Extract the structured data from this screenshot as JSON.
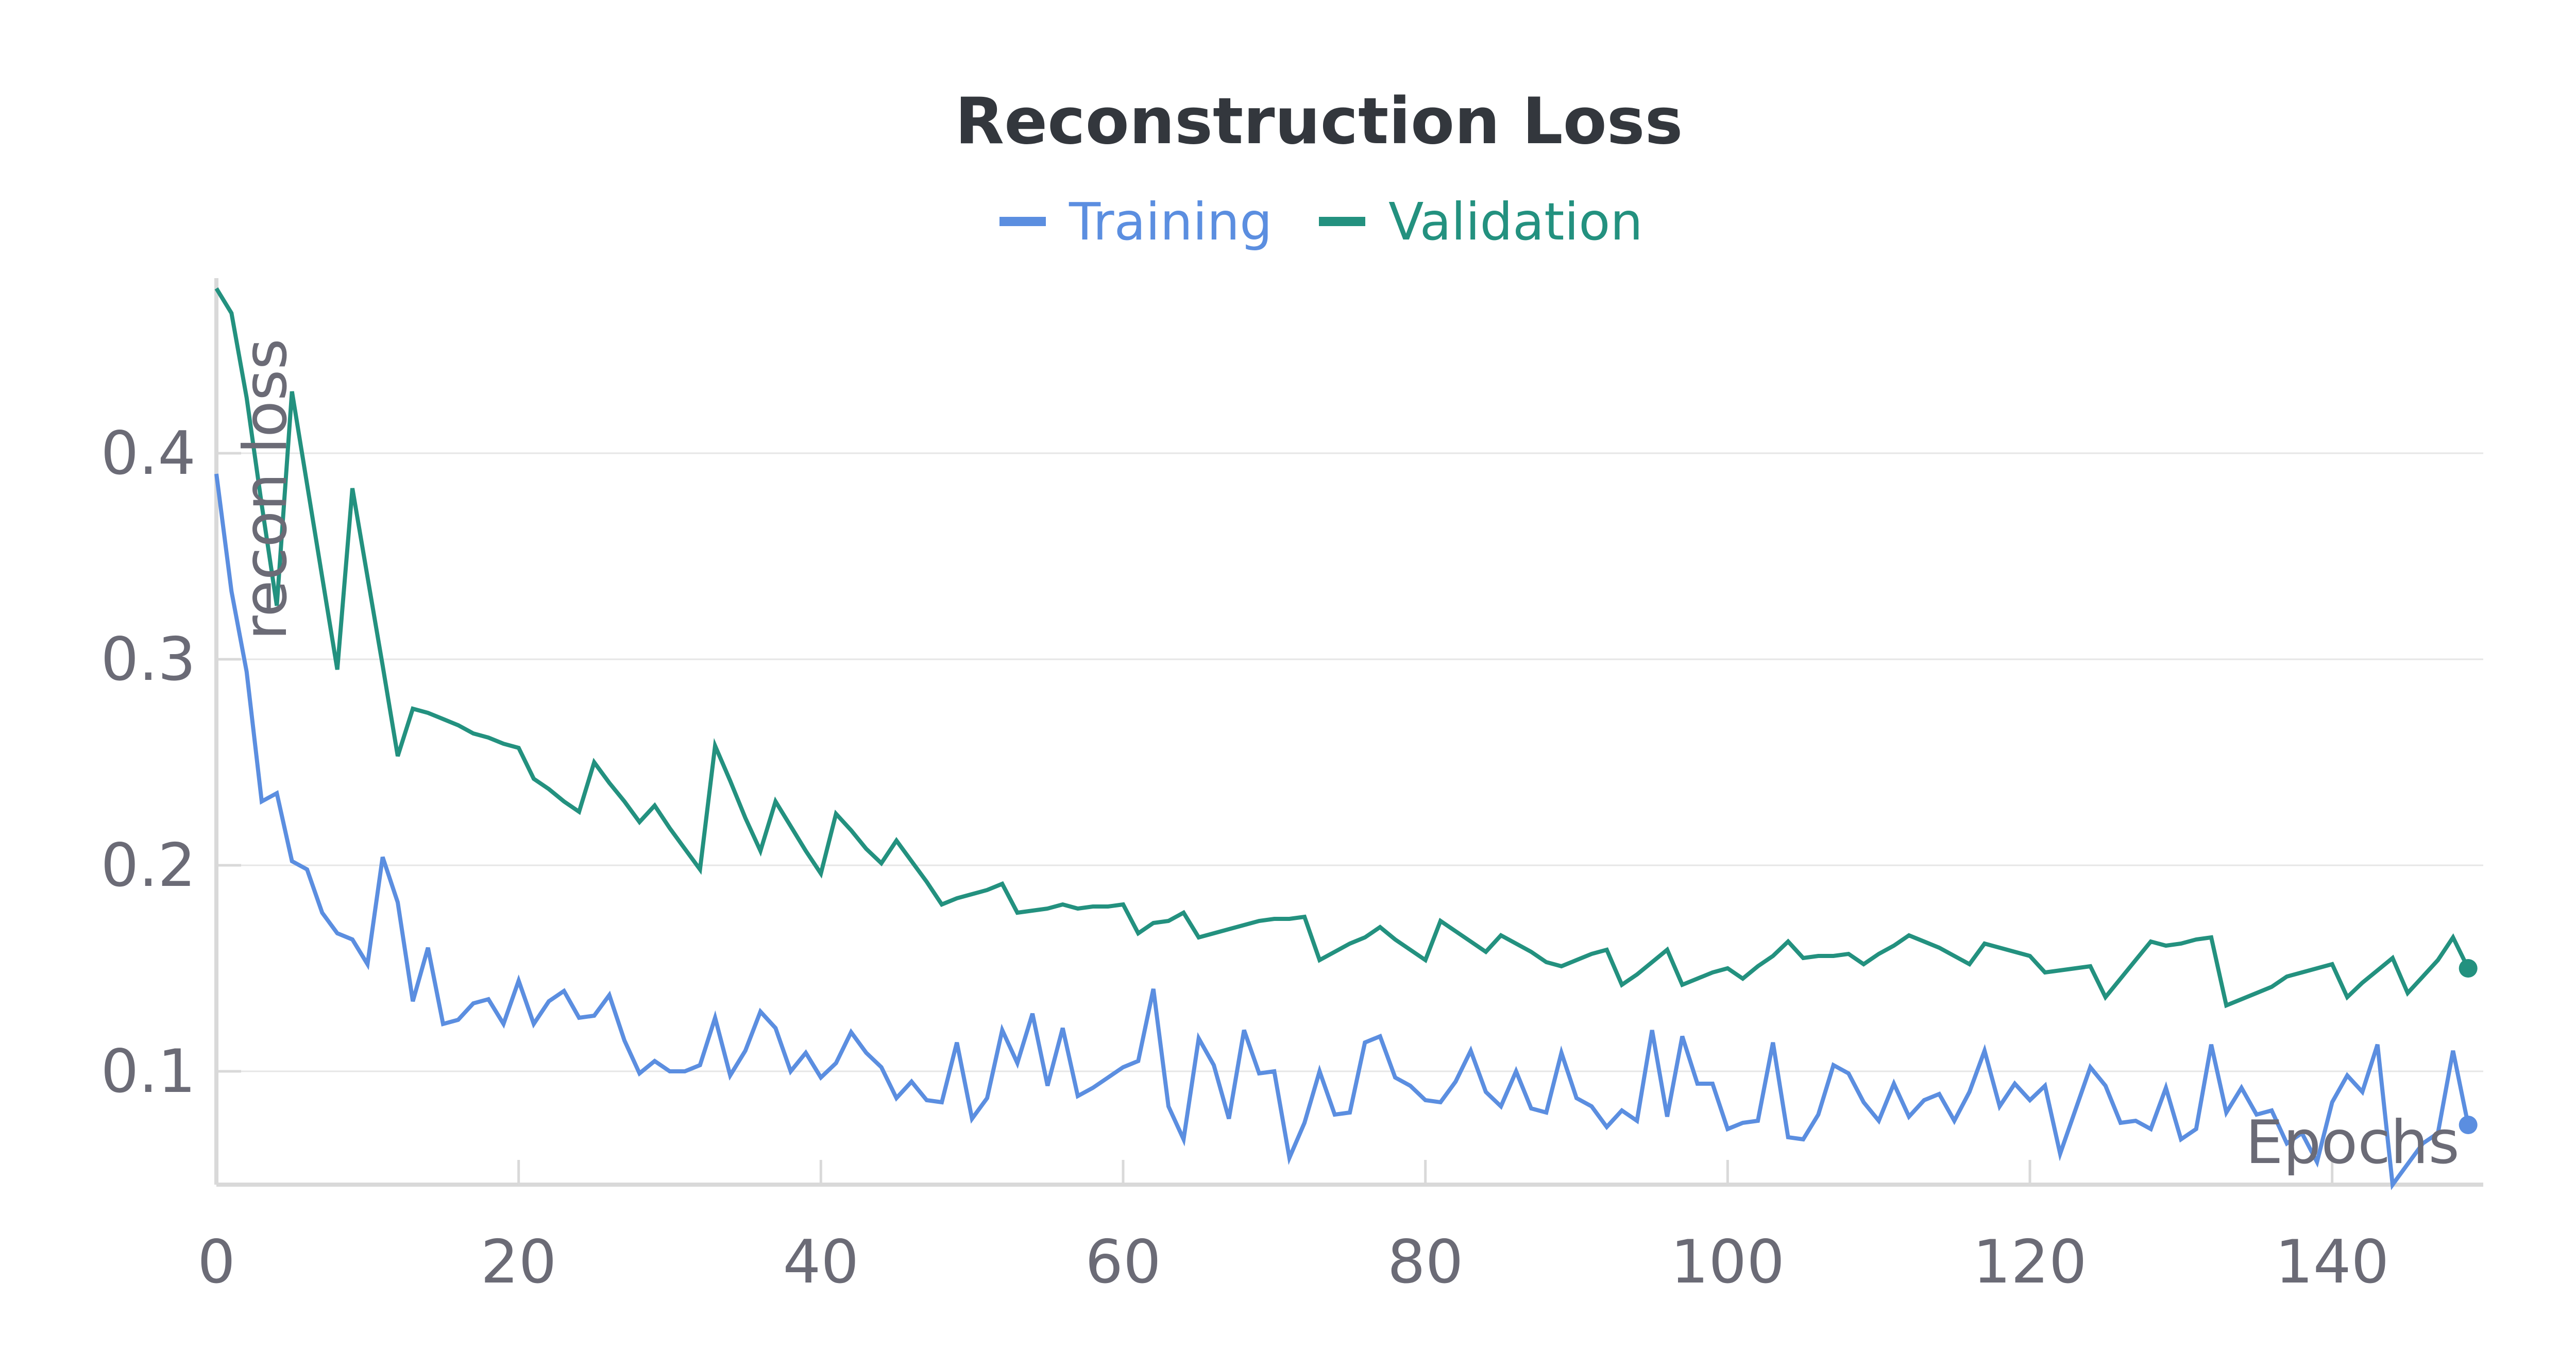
{
  "chart_data": {
    "type": "line",
    "title": "Reconstruction Loss",
    "xlabel": "Epochs",
    "ylabel": "recon loss",
    "xlim": [
      0,
      150
    ],
    "ylim": [
      0.045,
      0.48
    ],
    "x_ticks": [
      0,
      20,
      40,
      60,
      80,
      100,
      120,
      140
    ],
    "y_ticks": [
      0.1,
      0.2,
      0.3,
      0.4
    ],
    "grid": "horizontal",
    "legend_position": "top-center",
    "series": [
      {
        "name": "Training",
        "color": "#5b8ee0",
        "x": [
          0,
          1,
          2,
          3,
          4,
          5,
          6,
          7,
          8,
          9,
          10,
          11,
          12,
          13,
          14,
          15,
          16,
          17,
          18,
          19,
          20,
          21,
          22,
          23,
          24,
          25,
          26,
          27,
          28,
          29,
          30,
          31,
          32,
          33,
          34,
          35,
          36,
          37,
          38,
          39,
          40,
          41,
          42,
          43,
          44,
          45,
          46,
          47,
          48,
          49,
          50,
          51,
          52,
          53,
          54,
          55,
          56,
          57,
          58,
          59,
          60,
          61,
          62,
          63,
          64,
          65,
          66,
          67,
          68,
          69,
          70,
          71,
          72,
          73,
          74,
          75,
          76,
          77,
          78,
          79,
          80,
          81,
          82,
          83,
          84,
          85,
          86,
          87,
          88,
          89,
          90,
          91,
          92,
          93,
          94,
          95,
          96,
          97,
          98,
          99,
          100,
          101,
          102,
          103,
          104,
          105,
          106,
          107,
          108,
          109,
          110,
          111,
          112,
          113,
          114,
          115,
          116,
          117,
          118,
          119,
          120,
          121,
          122,
          123,
          124,
          125,
          126,
          127,
          128,
          129,
          130,
          131,
          132,
          133,
          134,
          135,
          136,
          137,
          138,
          139,
          140,
          141,
          142,
          143,
          144,
          145,
          146,
          147,
          148,
          149
        ],
        "values": [
          0.39,
          0.333,
          0.294,
          0.231,
          0.235,
          0.202,
          0.198,
          0.177,
          0.167,
          0.164,
          0.152,
          0.204,
          0.182,
          0.134,
          0.16,
          0.123,
          0.125,
          0.133,
          0.135,
          0.123,
          0.144,
          0.123,
          0.134,
          0.139,
          0.126,
          0.127,
          0.137,
          0.115,
          0.099,
          0.105,
          0.1,
          0.1,
          0.103,
          0.126,
          0.098,
          0.11,
          0.129,
          0.121,
          0.1,
          0.109,
          0.097,
          0.104,
          0.119,
          0.109,
          0.102,
          0.087,
          0.095,
          0.086,
          0.085,
          0.114,
          0.077,
          0.087,
          0.12,
          0.104,
          0.128,
          0.093,
          0.121,
          0.088,
          0.092,
          0.097,
          0.102,
          0.105,
          0.14,
          0.083,
          0.067,
          0.116,
          0.103,
          0.077,
          0.12,
          0.099,
          0.1,
          0.058,
          0.075,
          0.1,
          0.079,
          0.08,
          0.114,
          0.117,
          0.097,
          0.093,
          0.086,
          0.085,
          0.095,
          0.11,
          0.09,
          0.083,
          0.1,
          0.082,
          0.08,
          0.109,
          0.087,
          0.083,
          0.073,
          0.081,
          0.076,
          0.12,
          0.078,
          0.117,
          0.094,
          0.094,
          0.072,
          0.075,
          0.076,
          0.114,
          0.068,
          0.067,
          0.079,
          0.103,
          0.099,
          0.085,
          0.076,
          0.094,
          0.078,
          0.086,
          0.089,
          0.076,
          0.09,
          0.11,
          0.083,
          0.094,
          0.086,
          0.093,
          0.06,
          0.081,
          0.102,
          0.093,
          0.075,
          0.076,
          0.072,
          0.092,
          0.067,
          0.072,
          0.113,
          0.08,
          0.092,
          0.079,
          0.081,
          0.065,
          0.07,
          0.056,
          0.085,
          0.098,
          0.09,
          0.113,
          0.045,
          0.055,
          0.065,
          0.07,
          0.11,
          0.074
        ]
      },
      {
        "name": "Validation",
        "color": "#23917f",
        "x": [
          0,
          1,
          2,
          3,
          4,
          5,
          6,
          7,
          8,
          9,
          10,
          11,
          12,
          13,
          14,
          15,
          16,
          17,
          18,
          19,
          20,
          21,
          22,
          23,
          24,
          25,
          26,
          27,
          28,
          29,
          30,
          31,
          32,
          33,
          34,
          35,
          36,
          37,
          38,
          39,
          40,
          41,
          42,
          43,
          44,
          45,
          46,
          47,
          48,
          49,
          50,
          51,
          52,
          53,
          54,
          55,
          56,
          57,
          58,
          59,
          60,
          61,
          62,
          63,
          64,
          65,
          66,
          67,
          68,
          69,
          70,
          71,
          72,
          73,
          74,
          75,
          76,
          77,
          78,
          79,
          80,
          81,
          82,
          83,
          84,
          85,
          86,
          87,
          88,
          89,
          90,
          91,
          92,
          93,
          94,
          95,
          96,
          97,
          98,
          99,
          100,
          101,
          102,
          103,
          104,
          105,
          106,
          107,
          108,
          109,
          110,
          111,
          112,
          113,
          114,
          115,
          116,
          117,
          118,
          119,
          120,
          121,
          122,
          123,
          124,
          125,
          126,
          127,
          128,
          129,
          130,
          131,
          132,
          133,
          134,
          135,
          136,
          137,
          138,
          139,
          140,
          141,
          142,
          143,
          144,
          145,
          146,
          147,
          148,
          149
        ],
        "values": [
          0.48,
          0.468,
          0.427,
          0.375,
          0.326,
          0.43,
          0.385,
          0.34,
          0.295,
          0.383,
          0.34,
          0.297,
          0.253,
          0.276,
          0.274,
          0.271,
          0.268,
          0.264,
          0.262,
          0.259,
          0.257,
          0.242,
          0.237,
          0.231,
          0.226,
          0.25,
          0.24,
          0.231,
          0.221,
          0.229,
          0.218,
          0.208,
          0.198,
          0.258,
          0.241,
          0.223,
          0.207,
          0.231,
          0.219,
          0.207,
          0.196,
          0.225,
          0.217,
          0.208,
          0.201,
          0.212,
          0.202,
          0.192,
          0.181,
          0.184,
          0.186,
          0.188,
          0.191,
          0.177,
          0.178,
          0.179,
          0.181,
          0.179,
          0.18,
          0.18,
          0.181,
          0.167,
          0.172,
          0.173,
          0.177,
          0.165,
          0.167,
          0.169,
          0.171,
          0.173,
          0.174,
          0.174,
          0.175,
          0.154,
          0.158,
          0.162,
          0.165,
          0.17,
          0.164,
          0.159,
          0.154,
          0.173,
          0.168,
          0.163,
          0.158,
          0.166,
          0.162,
          0.158,
          0.153,
          0.151,
          0.154,
          0.157,
          0.159,
          0.142,
          0.147,
          0.153,
          0.159,
          0.142,
          0.145,
          0.148,
          0.15,
          0.145,
          0.151,
          0.156,
          0.163,
          0.155,
          0.156,
          0.156,
          0.157,
          0.152,
          0.157,
          0.161,
          0.166,
          0.163,
          0.16,
          0.156,
          0.152,
          0.162,
          0.16,
          0.158,
          0.156,
          0.148,
          0.149,
          0.15,
          0.151,
          0.136,
          0.145,
          0.154,
          0.163,
          0.161,
          0.162,
          0.164,
          0.165,
          0.132,
          0.135,
          0.138,
          0.141,
          0.146,
          0.148,
          0.15,
          0.152,
          0.136,
          0.143,
          0.149,
          0.155,
          0.138,
          0.146,
          0.154,
          0.165,
          0.15
        ]
      }
    ]
  }
}
